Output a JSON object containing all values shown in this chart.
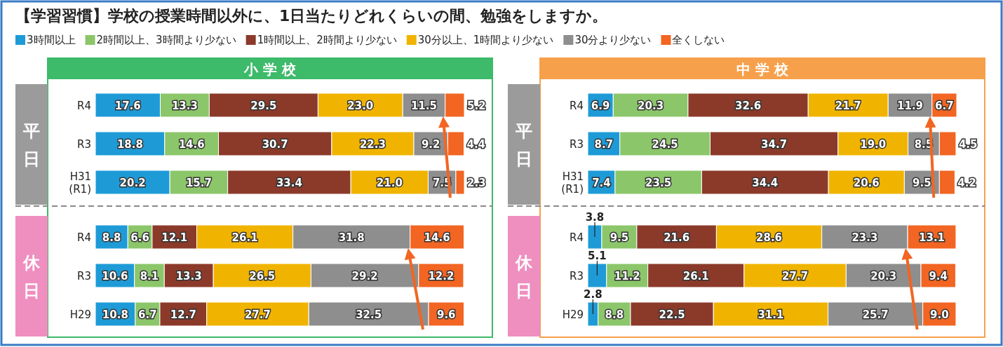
{
  "chart_data": [
    {
      "type": "bar",
      "orientation": "horizontal",
      "stacked": true,
      "title": "【学習習慣】学校の授業時間以外に、1日当たりどれくらいの間、勉強をしますか。",
      "subtitle": "小 学 校",
      "ylabel": "平日",
      "legend": "top",
      "categories": [
        "R4",
        "R3",
        "H31 (R1)"
      ],
      "series": [
        {
          "name": "3時間以上",
          "color": "#1e9bd7",
          "values": [
            17.6,
            18.8,
            20.2
          ],
          "value_labels": [
            "17.6",
            "18.8",
            "20.2"
          ]
        },
        {
          "name": "2時間以上、3時間より少ない",
          "color": "#8cc66a",
          "values": [
            13.3,
            14.6,
            15.7
          ],
          "value_labels": [
            "13.3",
            "14.6",
            "15.7"
          ]
        },
        {
          "name": "1時間以上、2時間より少ない",
          "color": "#8b3a2a",
          "values": [
            29.5,
            30.7,
            33.4
          ],
          "value_labels": [
            "29.5",
            "30.7",
            "33.4"
          ]
        },
        {
          "name": "30分以上、1時間より少ない",
          "color": "#f0b400",
          "values": [
            23.0,
            22.3,
            21.0
          ],
          "value_labels": [
            "23.0",
            "22.3",
            "21.0"
          ]
        },
        {
          "name": "30分より少ない",
          "color": "#8e8e8e",
          "values": [
            11.5,
            9.2,
            7.5
          ],
          "value_labels": [
            "11.5",
            "9.2",
            "7.5"
          ]
        },
        {
          "name": "全くしない",
          "color": "#f26522",
          "values": [
            5.2,
            4.4,
            2.3
          ],
          "value_labels": [
            "5.2",
            "4.4",
            "2.3"
          ]
        }
      ]
    },
    {
      "type": "bar",
      "orientation": "horizontal",
      "stacked": true,
      "ylabel": "休日",
      "categories": [
        "R4",
        "R3",
        "H29"
      ],
      "series": [
        {
          "color": "#1e9bd7",
          "values": [
            8.8,
            10.6,
            10.8
          ],
          "value_labels": [
            "8.8",
            "10.6",
            "10.8"
          ]
        },
        {
          "color": "#8cc66a",
          "values": [
            6.6,
            8.1,
            6.7
          ],
          "value_labels": [
            "6.6",
            "8.1",
            "6.7"
          ]
        },
        {
          "color": "#8b3a2a",
          "values": [
            12.1,
            13.3,
            12.7
          ],
          "value_labels": [
            "12.1",
            "13.3",
            "12.7"
          ]
        },
        {
          "color": "#f0b400",
          "values": [
            26.1,
            26.5,
            27.7
          ],
          "value_labels": [
            "26.1",
            "26.5",
            "27.7"
          ]
        },
        {
          "color": "#8e8e8e",
          "values": [
            31.8,
            29.2,
            32.5
          ],
          "value_labels": [
            "31.8",
            "29.2",
            "32.5"
          ]
        },
        {
          "color": "#f26522",
          "values": [
            14.6,
            12.2,
            9.6
          ],
          "value_labels": [
            "14.6",
            "12.2",
            "9.6"
          ]
        }
      ]
    },
    {
      "type": "bar",
      "orientation": "horizontal",
      "stacked": true,
      "subtitle": "中 学 校",
      "ylabel": "平日",
      "categories": [
        "R4",
        "R3",
        "H31 (R1)"
      ],
      "series": [
        {
          "color": "#1e9bd7",
          "values": [
            6.9,
            8.7,
            7.4
          ],
          "value_labels": [
            "6.9",
            "8.7",
            "7.4"
          ]
        },
        {
          "color": "#8cc66a",
          "values": [
            20.3,
            24.5,
            23.5
          ],
          "value_labels": [
            "20.3",
            "24.5",
            "23.5"
          ]
        },
        {
          "color": "#8b3a2a",
          "values": [
            32.6,
            34.7,
            34.4
          ],
          "value_labels": [
            "32.6",
            "34.7",
            "34.4"
          ]
        },
        {
          "color": "#f0b400",
          "values": [
            21.7,
            19.0,
            20.6
          ],
          "value_labels": [
            "21.7",
            "19.0",
            "20.6"
          ]
        },
        {
          "color": "#8e8e8e",
          "values": [
            11.9,
            8.5,
            9.5
          ],
          "value_labels": [
            "11.9",
            "8.5",
            "9.5"
          ]
        },
        {
          "color": "#f26522",
          "values": [
            6.7,
            4.5,
            4.2
          ],
          "value_labels": [
            "6.7",
            "4.5",
            "4.2"
          ]
        }
      ]
    },
    {
      "type": "bar",
      "orientation": "horizontal",
      "stacked": true,
      "ylabel": "休日",
      "categories": [
        "R4",
        "R3",
        "H29"
      ],
      "series": [
        {
          "color": "#1e9bd7",
          "values": [
            3.8,
            5.1,
            2.8
          ],
          "value_labels": [
            "3.8",
            "5.1",
            "2.8"
          ]
        },
        {
          "color": "#8cc66a",
          "values": [
            9.5,
            11.2,
            8.8
          ],
          "value_labels": [
            "9.5",
            "11.2",
            "8.8"
          ]
        },
        {
          "color": "#8b3a2a",
          "values": [
            21.6,
            26.1,
            22.5
          ],
          "value_labels": [
            "21.6",
            "26.1",
            "22.5"
          ]
        },
        {
          "color": "#f0b400",
          "values": [
            28.6,
            27.7,
            31.1
          ],
          "value_labels": [
            "28.6",
            "27.7",
            "31.1"
          ]
        },
        {
          "color": "#8e8e8e",
          "values": [
            23.3,
            20.3,
            25.7
          ],
          "value_labels": [
            "23.3",
            "20.3",
            "25.7"
          ]
        },
        {
          "color": "#f26522",
          "values": [
            13.1,
            9.4,
            9.0
          ],
          "value_labels": [
            "13.1",
            "9.4",
            "9.0"
          ]
        }
      ]
    }
  ]
}
